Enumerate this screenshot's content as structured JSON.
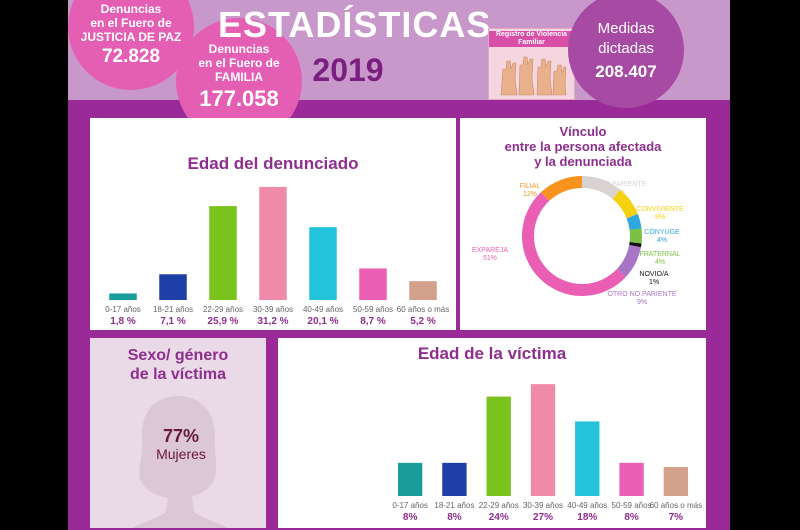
{
  "header": {
    "title": "ESTADÍSTICAS",
    "year": "2019",
    "logo_text": "Registro de Violencia Familiar",
    "stat_paz": {
      "label_lines": [
        "Denuncias",
        "en el Fuero de",
        "JUSTICIA DE PAZ"
      ],
      "value": "72.828"
    },
    "stat_familia": {
      "label_lines": [
        "Denuncias",
        "en el Fuero de",
        "FAMILIA"
      ],
      "value": "177.058"
    },
    "stat_medidas": {
      "label_lines": [
        "Medidas",
        "dictadas"
      ],
      "value": "208.407"
    }
  },
  "sexo": {
    "title_lines": [
      "Sexo/ género",
      "de la víctima"
    ],
    "value": "77%",
    "label": "Mujeres"
  },
  "colors": [
    "#1a9c9a",
    "#1e3fa6",
    "#7ac21c",
    "#f08aa9",
    "#23c3dc",
    "#ea5fb4",
    "#d3a08c"
  ],
  "chart_data": [
    {
      "type": "bar",
      "title": "Edad del denunciado",
      "categories": [
        "0-17 años",
        "18-21 años",
        "22-29 años",
        "30-39 años",
        "40-49 años",
        "50-59 años",
        "60 años o más"
      ],
      "values": [
        1.8,
        7.1,
        25.9,
        31.2,
        20.1,
        8.7,
        5.2
      ],
      "value_labels": [
        "1,8 %",
        "7,1 %",
        "25,9 %",
        "31,2 %",
        "20,1 %",
        "8,7 %",
        "5,2 %"
      ],
      "ylim": [
        0,
        32
      ]
    },
    {
      "type": "bar",
      "title": "Edad de la víctima",
      "categories": [
        "0-17 años",
        "18-21 años",
        "22-29 años",
        "30-39 años",
        "40-49 años",
        "50-59 años",
        "60 años o más"
      ],
      "values": [
        8,
        8,
        24,
        27,
        18,
        8,
        7
      ],
      "value_labels": [
        "8%",
        "8%",
        "24%",
        "27%",
        "18%",
        "8%",
        "7%"
      ],
      "ylim": [
        0,
        28
      ]
    },
    {
      "type": "pie",
      "title": "Vínculo entre la persona afectada y la denunciada",
      "title_lines": [
        "Vínculo",
        "entre la persona afectada",
        "y la denunciada"
      ],
      "slices": [
        {
          "name": "FILIAL",
          "value": 12,
          "label": "12%",
          "color": "#f7931e"
        },
        {
          "name": "OTRO PARIENTE",
          "value": 11,
          "label": "11%",
          "color": "#d9d2d2"
        },
        {
          "name": "CONVIVIENTE",
          "value": 8,
          "label": "8%",
          "color": "#f5d20f"
        },
        {
          "name": "CÓNYUGE",
          "value": 4,
          "label": "4%",
          "color": "#2fa8e0"
        },
        {
          "name": "FRATERNAL",
          "value": 4,
          "label": "4%",
          "color": "#7cc144"
        },
        {
          "name": "NOVIO/A",
          "value": 1,
          "label": "1%",
          "color": "#111111"
        },
        {
          "name": "OTRO NO PARIENTE",
          "value": 9,
          "label": "9%",
          "color": "#a875c6"
        },
        {
          "name": "EXPAREJA",
          "value": 51,
          "label": "51%",
          "color": "#ea5fb4"
        }
      ]
    }
  ]
}
